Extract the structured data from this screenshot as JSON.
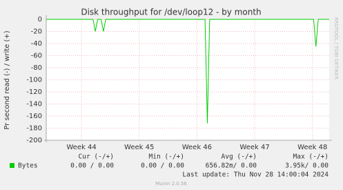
{
  "chart_data": {
    "type": "line",
    "title": "Disk throughput for /dev/loop12 - by month",
    "ylabel": "Pr second read (-) / write (+)",
    "side_text": "RRDTOOL / TOBI OETIKER",
    "xlim": [
      43.39,
      48.29
    ],
    "xticks": [
      {
        "value": 44,
        "label": "Week 44"
      },
      {
        "value": 45,
        "label": "Week 45"
      },
      {
        "value": 46,
        "label": "Week 46"
      },
      {
        "value": 47,
        "label": "Week 47"
      },
      {
        "value": 48,
        "label": "Week 48"
      }
    ],
    "ylim": [
      -200,
      0
    ],
    "yticks": [
      0,
      -20,
      -40,
      -60,
      -80,
      -100,
      -120,
      -140,
      -160,
      -180,
      -200
    ],
    "grid": true,
    "series": [
      {
        "name": "Bytes",
        "color": "#00cc00",
        "x": [
          43.39,
          44.2,
          44.24,
          44.28,
          44.34,
          44.38,
          44.42,
          46.14,
          46.18,
          46.22,
          48.02,
          48.06,
          48.1,
          48.29
        ],
        "values": [
          0,
          0,
          -20,
          0,
          0,
          -20,
          0,
          0,
          -172,
          0,
          0,
          -45,
          0,
          0
        ],
        "stats": [
          "0.00 /  0.00",
          "0.00 /  0.00",
          "656.82m/  0.00",
          "3.95k/  0.00"
        ]
      }
    ],
    "stat_headers": [
      "Cur (-/+)",
      "Min (-/+)",
      "Avg (-/+)",
      "Max (-/+)"
    ],
    "last_update": "Last update: Thu Nov 28 14:00:04 2024",
    "footer": "Munin 2.0.56"
  }
}
